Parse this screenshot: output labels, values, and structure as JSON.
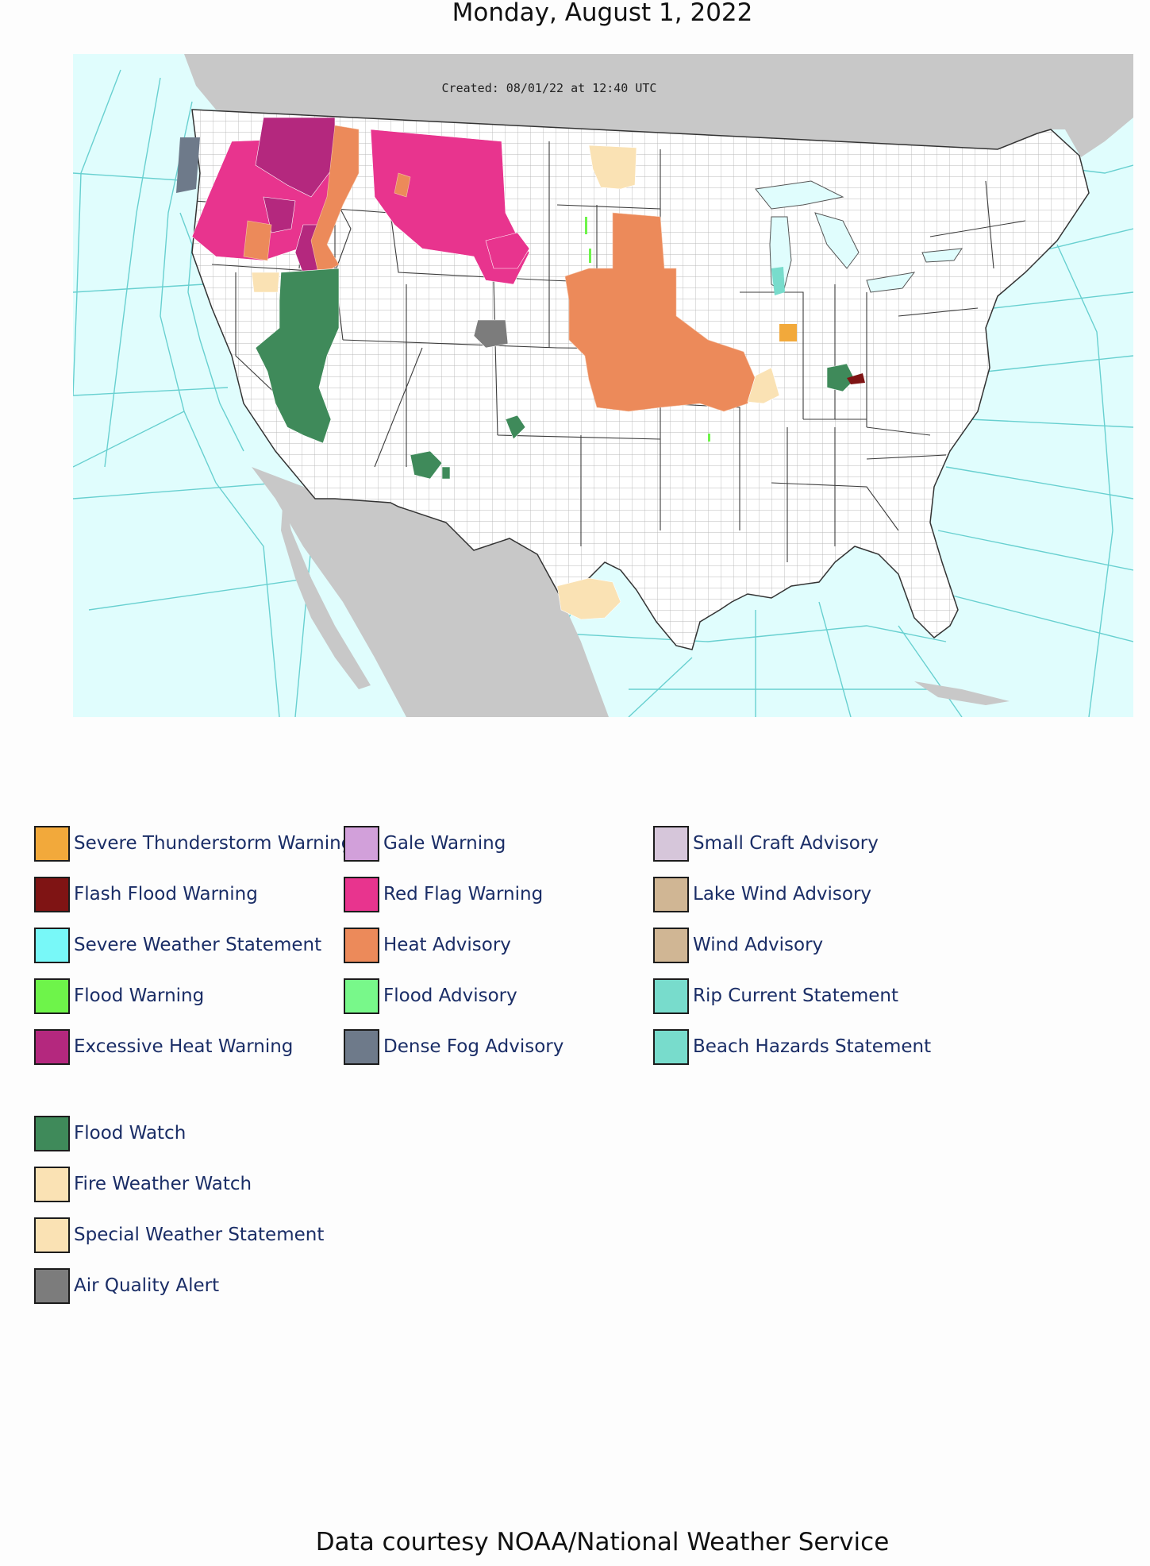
{
  "page": {
    "date_title": "Monday, August 1, 2022",
    "credit": "Data courtesy NOAA/National Weather Service"
  },
  "map": {
    "created_stamp": "Created: 08/01/22 at 12:40 UTC",
    "colors": {
      "ocean": "#e0fdfd",
      "marine_zone_lines": "#68d0d0",
      "foreign_land": "#c8c8c8",
      "us_land": "#ffffff",
      "county_lines": "#b4b4b4"
    }
  },
  "legend": {
    "column_1": [
      {
        "label": "Severe Thunderstorm Warning",
        "color": "#f2a93b"
      },
      {
        "label": "Flash Flood Warning",
        "color": "#7f1414"
      },
      {
        "label": "Severe Weather Statement",
        "color": "#78f8f8"
      },
      {
        "label": "Flood Warning",
        "color": "#6ef44a"
      },
      {
        "label": "Excessive Heat Warning",
        "color": "#b4287e"
      }
    ],
    "column_2": [
      {
        "label": "Gale Warning",
        "color": "#d2a0da"
      },
      {
        "label": "Red Flag Warning",
        "color": "#e8348e"
      },
      {
        "label": "Heat Advisory",
        "color": "#ec8a5a"
      },
      {
        "label": "Flood Advisory",
        "color": "#78f88a"
      },
      {
        "label": "Dense Fog Advisory",
        "color": "#6e7a8a"
      }
    ],
    "column_3": [
      {
        "label": "Small Craft Advisory",
        "color": "#d6c6da"
      },
      {
        "label": "Lake Wind Advisory",
        "color": "#d0b694"
      },
      {
        "label": "Wind Advisory",
        "color": "#d0b694"
      },
      {
        "label": "Rip Current Statement",
        "color": "#78dccc"
      },
      {
        "label": "Beach Hazards Statement",
        "color": "#78dccc"
      }
    ],
    "watches": [
      {
        "label": "Flood Watch",
        "color": "#3f8a5a"
      },
      {
        "label": "Fire Weather Watch",
        "color": "#fae2b4"
      },
      {
        "label": "Special Weather Statement",
        "color": "#fae2b4"
      },
      {
        "label": "Air Quality Alert",
        "color": "#7c7c7c"
      }
    ]
  }
}
